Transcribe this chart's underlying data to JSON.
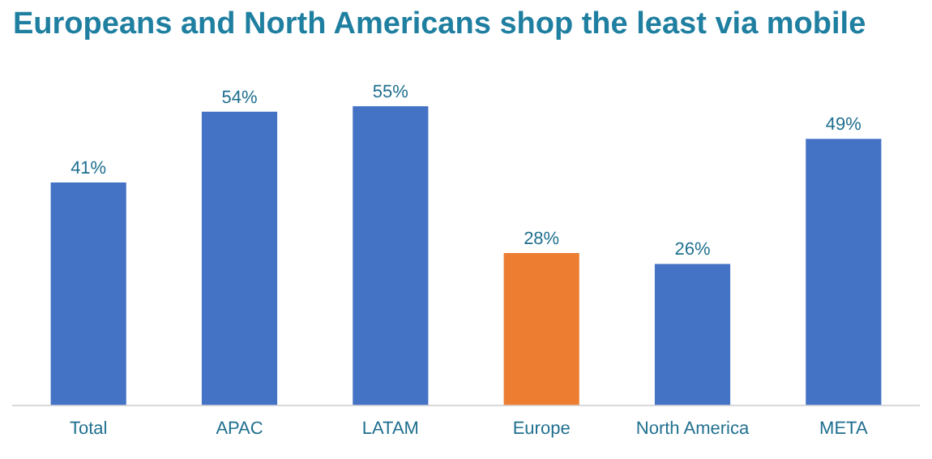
{
  "chart_data": {
    "type": "bar",
    "title": "Europeans and North Americans shop the least via mobile",
    "categories": [
      "Total",
      "APAC",
      "LATAM",
      "Europe",
      "North America",
      "META"
    ],
    "values": [
      41,
      54,
      55,
      28,
      26,
      49
    ],
    "colors": [
      "#4472c4",
      "#4472c4",
      "#4472c4",
      "#ed7d31",
      "#4472c4",
      "#4472c4"
    ],
    "value_labels": [
      "41%",
      "54%",
      "55%",
      "28%",
      "26%",
      "49%"
    ],
    "grid": false,
    "legend": false
  }
}
